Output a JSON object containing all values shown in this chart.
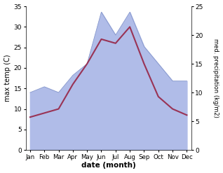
{
  "months": [
    "Jan",
    "Feb",
    "Mar",
    "Apr",
    "May",
    "Jun",
    "Jul",
    "Aug",
    "Sep",
    "Oct",
    "Nov",
    "Dec"
  ],
  "month_x": [
    0,
    1,
    2,
    3,
    4,
    5,
    6,
    7,
    8,
    9,
    10,
    11
  ],
  "temperature": [
    8.0,
    9.0,
    10.0,
    16.0,
    21.0,
    27.0,
    26.0,
    30.0,
    21.0,
    13.0,
    10.0,
    8.5
  ],
  "precipitation": [
    10.0,
    11.0,
    10.0,
    13.0,
    15.0,
    24.0,
    20.0,
    24.0,
    18.0,
    15.0,
    12.0,
    12.0
  ],
  "temp_color": "#993355",
  "precip_fill_color": "#b0bce8",
  "precip_line_color": "#8899cc",
  "temp_ylim": [
    0,
    35
  ],
  "temp_yticks": [
    0,
    5,
    10,
    15,
    20,
    25,
    30,
    35
  ],
  "precip_ylim": [
    0,
    25
  ],
  "precip_yticks": [
    0,
    5,
    10,
    15,
    20,
    25
  ],
  "xlabel": "date (month)",
  "ylabel_left": "max temp (C)",
  "ylabel_right": "med. precipitation (kg/m2)",
  "bg_color": "#ffffff",
  "fig_width": 3.18,
  "fig_height": 2.47,
  "dpi": 100
}
